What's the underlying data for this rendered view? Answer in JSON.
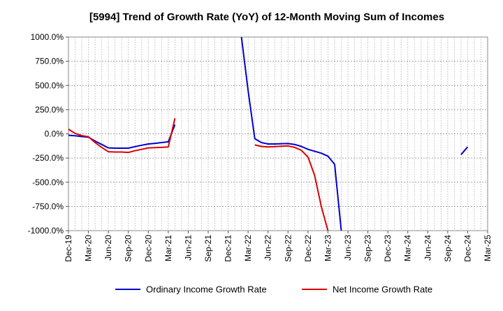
{
  "chart_data": {
    "type": "line",
    "title": "[5994]  Trend of Growth Rate (YoY) of 12-Month Moving Sum of Incomes",
    "xlabel": "",
    "ylabel": "",
    "ylim": [
      -1000,
      1000
    ],
    "yticks": [
      1000,
      750,
      500,
      250,
      0,
      -250,
      -500,
      -750,
      -1000
    ],
    "ytick_labels": [
      "1000.0%",
      "750.0%",
      "500.0%",
      "250.0%",
      "0.0%",
      "-250.0%",
      "-500.0%",
      "-750.0%",
      "-1000.0%"
    ],
    "x_months": [
      "Dec-19",
      "Jan-20",
      "Feb-20",
      "Mar-20",
      "Apr-20",
      "May-20",
      "Jun-20",
      "Jul-20",
      "Aug-20",
      "Sep-20",
      "Oct-20",
      "Nov-20",
      "Dec-20",
      "Jan-21",
      "Feb-21",
      "Mar-21",
      "Apr-21",
      "May-21",
      "Jun-21",
      "Jul-21",
      "Aug-21",
      "Sep-21",
      "Oct-21",
      "Nov-21",
      "Dec-21",
      "Jan-22",
      "Feb-22",
      "Mar-22",
      "Apr-22",
      "May-22",
      "Jun-22",
      "Jul-22",
      "Aug-22",
      "Sep-22",
      "Oct-22",
      "Nov-22",
      "Dec-22",
      "Jan-23",
      "Feb-23",
      "Mar-23",
      "Apr-23",
      "May-23",
      "Jun-23",
      "Jul-23",
      "Aug-23",
      "Sep-23",
      "Oct-23",
      "Nov-23",
      "Dec-23",
      "Jan-24",
      "Feb-24",
      "Mar-24",
      "Apr-24",
      "May-24",
      "Jun-24",
      "Jul-24",
      "Aug-24",
      "Sep-24",
      "Oct-24",
      "Nov-24",
      "Dec-24",
      "Jan-25",
      "Feb-25",
      "Mar-25"
    ],
    "xtick_labels": [
      "Dec-19",
      "Mar-20",
      "Jun-20",
      "Sep-20",
      "Dec-20",
      "Mar-21",
      "Jun-21",
      "Sep-21",
      "Dec-21",
      "Mar-22",
      "Jun-22",
      "Sep-22",
      "Dec-22",
      "Mar-23",
      "Jun-23",
      "Sep-23",
      "Dec-23",
      "Mar-24",
      "Jun-24",
      "Sep-24",
      "Dec-24",
      "Mar-25"
    ],
    "grid": true,
    "legend_position": "bottom",
    "series": [
      {
        "name": "Ordinary Income Growth Rate",
        "color": "#0000cc",
        "segments": [
          [
            [
              "Dec-19",
              -15
            ],
            [
              "Jan-20",
              -20
            ],
            [
              "Feb-20",
              -28
            ],
            [
              "Mar-20",
              -35
            ],
            [
              "Apr-20",
              -75
            ],
            [
              "May-20",
              -110
            ],
            [
              "Jun-20",
              -145
            ],
            [
              "Jul-20",
              -148
            ],
            [
              "Aug-20",
              -148
            ],
            [
              "Sep-20",
              -148
            ],
            [
              "Oct-20",
              -132
            ],
            [
              "Nov-20",
              -118
            ],
            [
              "Dec-20",
              -105
            ],
            [
              "Jan-21",
              -98
            ],
            [
              "Feb-21",
              -90
            ],
            [
              "Mar-21",
              -82
            ],
            [
              "Apr-21",
              95
            ]
          ],
          [
            [
              "Feb-22",
              1000
            ],
            [
              "Mar-22",
              450
            ],
            [
              "Apr-22",
              -50
            ],
            [
              "May-22",
              -90
            ],
            [
              "Jun-22",
              -105
            ],
            [
              "Jul-22",
              -105
            ],
            [
              "Aug-22",
              -102
            ],
            [
              "Sep-22",
              -100
            ],
            [
              "Oct-22",
              -110
            ],
            [
              "Nov-22",
              -130
            ],
            [
              "Dec-22",
              -160
            ],
            [
              "Jan-23",
              -180
            ],
            [
              "Feb-23",
              -200
            ],
            [
              "Mar-23",
              -230
            ],
            [
              "Apr-23",
              -315
            ],
            [
              "May-23",
              -1000
            ]
          ],
          [
            [
              "Nov-24",
              -215
            ],
            [
              "Dec-24",
              -135
            ]
          ]
        ]
      },
      {
        "name": "Net Income Growth Rate",
        "color": "#dd0000",
        "segments": [
          [
            [
              "Dec-19",
              48
            ],
            [
              "Jan-20",
              5
            ],
            [
              "Feb-20",
              -18
            ],
            [
              "Mar-20",
              -30
            ],
            [
              "Apr-20",
              -90
            ],
            [
              "May-20",
              -140
            ],
            [
              "Jun-20",
              -185
            ],
            [
              "Jul-20",
              -188
            ],
            [
              "Aug-20",
              -188
            ],
            [
              "Sep-20",
              -192
            ],
            [
              "Oct-20",
              -175
            ],
            [
              "Nov-20",
              -160
            ],
            [
              "Dec-20",
              -145
            ],
            [
              "Jan-21",
              -142
            ],
            [
              "Feb-21",
              -140
            ],
            [
              "Mar-21",
              -135
            ],
            [
              "Apr-21",
              160
            ]
          ],
          [
            [
              "Apr-22",
              -115
            ],
            [
              "May-22",
              -130
            ],
            [
              "Jun-22",
              -135
            ],
            [
              "Jul-22",
              -132
            ],
            [
              "Aug-22",
              -128
            ],
            [
              "Sep-22",
              -125
            ],
            [
              "Oct-22",
              -140
            ],
            [
              "Nov-22",
              -170
            ],
            [
              "Dec-22",
              -240
            ],
            [
              "Jan-23",
              -430
            ],
            [
              "Feb-23",
              -750
            ],
            [
              "Mar-23",
              -1000
            ]
          ]
        ]
      }
    ]
  }
}
